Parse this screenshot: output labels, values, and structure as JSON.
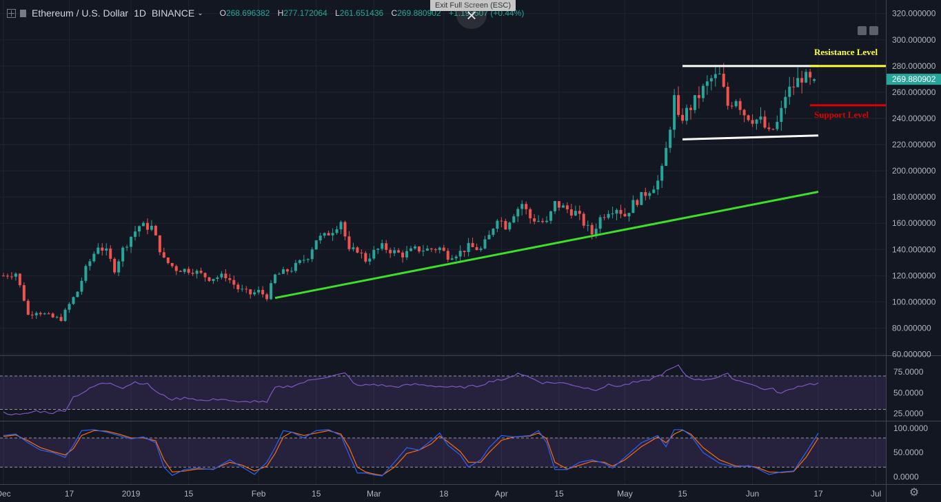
{
  "header": {
    "symbol": "Ethereum / U.S. Dollar",
    "interval": "1D",
    "exchange": "BINANCE",
    "open_label": "O",
    "open": "268.696382",
    "high_label": "H",
    "high": "277.172064",
    "low_label": "L",
    "low": "261.651436",
    "close_label": "C",
    "close": "269.880902",
    "change": "+1.193507 (+0.44%)"
  },
  "exit_fullscreen": "Exit Full Screen (ESC)",
  "colors": {
    "background": "#131722",
    "up": "#26a69a",
    "down": "#ef5350",
    "trendline": "#3ce02a",
    "resistance": "#ffff3c",
    "support": "#e00000",
    "channel": "#ffffff",
    "rsi": "#7e57c2",
    "stoch_k": "#2962ff",
    "stoch_d": "#ff6d00"
  },
  "chart_data": [
    {
      "type": "candlestick",
      "title": "Ethereum / U.S. Dollar 1D BINANCE",
      "y_ticks": [
        "60.000000",
        "80.000000",
        "100.000000",
        "120.000000",
        "140.000000",
        "160.000000",
        "180.000000",
        "200.000000",
        "220.000000",
        "240.000000",
        "260.000000",
        "280.000000",
        "300.000000",
        "320.000000"
      ],
      "ylim": [
        60,
        320
      ],
      "x_ticks": [
        {
          "label": "Dec",
          "day": 0
        },
        {
          "label": "17",
          "day": 16
        },
        {
          "label": "2019",
          "day": 31
        },
        {
          "label": "15",
          "day": 45
        },
        {
          "label": "Feb",
          "day": 62
        },
        {
          "label": "15",
          "day": 76
        },
        {
          "label": "Mar",
          "day": 90
        },
        {
          "label": "18",
          "day": 107
        },
        {
          "label": "Apr",
          "day": 121
        },
        {
          "label": "15",
          "day": 135
        },
        {
          "label": "May",
          "day": 151
        },
        {
          "label": "15",
          "day": 165
        },
        {
          "label": "Jun",
          "day": 182
        },
        {
          "label": "17",
          "day": 198
        },
        {
          "label": "Jul",
          "day": 212
        }
      ],
      "last_price": "269.880902",
      "anchors": [
        [
          0,
          120
        ],
        [
          3,
          122
        ],
        [
          5,
          102
        ],
        [
          6,
          90
        ],
        [
          8,
          93
        ],
        [
          12,
          88
        ],
        [
          14,
          87
        ],
        [
          16,
          98
        ],
        [
          18,
          108
        ],
        [
          20,
          125
        ],
        [
          23,
          143
        ],
        [
          25,
          138
        ],
        [
          27,
          125
        ],
        [
          29,
          140
        ],
        [
          31,
          150
        ],
        [
          33,
          158
        ],
        [
          36,
          157
        ],
        [
          39,
          132
        ],
        [
          42,
          125
        ],
        [
          46,
          124
        ],
        [
          50,
          118
        ],
        [
          54,
          120
        ],
        [
          57,
          110
        ],
        [
          60,
          106
        ],
        [
          62,
          108
        ],
        [
          64,
          104
        ],
        [
          66,
          120
        ],
        [
          70,
          125
        ],
        [
          74,
          135
        ],
        [
          76,
          148
        ],
        [
          78,
          150
        ],
        [
          80,
          155
        ],
        [
          82,
          162
        ],
        [
          84,
          138
        ],
        [
          86,
          140
        ],
        [
          88,
          132
        ],
        [
          90,
          138
        ],
        [
          92,
          142
        ],
        [
          95,
          138
        ],
        [
          97,
          136
        ],
        [
          100,
          140
        ],
        [
          103,
          140
        ],
        [
          106,
          141
        ],
        [
          108,
          135
        ],
        [
          111,
          138
        ],
        [
          113,
          142
        ],
        [
          116,
          140
        ],
        [
          118,
          150
        ],
        [
          120,
          165
        ],
        [
          122,
          158
        ],
        [
          124,
          168
        ],
        [
          126,
          175
        ],
        [
          128,
          164
        ],
        [
          130,
          162
        ],
        [
          132,
          160
        ],
        [
          134,
          175
        ],
        [
          136,
          172
        ],
        [
          139,
          168
        ],
        [
          141,
          160
        ],
        [
          143,
          152
        ],
        [
          145,
          164
        ],
        [
          147,
          170
        ],
        [
          149,
          172
        ],
        [
          151,
          166
        ],
        [
          153,
          175
        ],
        [
          155,
          180
        ],
        [
          157,
          186
        ],
        [
          159,
          192
        ],
        [
          160,
          200
        ],
        [
          161,
          216
        ],
        [
          162,
          235
        ],
        [
          163,
          255
        ],
        [
          164,
          238
        ],
        [
          166,
          245
        ],
        [
          168,
          253
        ],
        [
          170,
          262
        ],
        [
          172,
          270
        ],
        [
          174,
          272
        ],
        [
          176,
          250
        ],
        [
          178,
          256
        ],
        [
          180,
          244
        ],
        [
          182,
          240
        ],
        [
          184,
          238
        ],
        [
          186,
          228
        ],
        [
          188,
          236
        ],
        [
          189,
          245
        ],
        [
          190,
          258
        ],
        [
          192,
          265
        ],
        [
          194,
          272
        ],
        [
          196,
          268
        ],
        [
          197,
          270
        ]
      ],
      "trendline": {
        "from": {
          "day": 66,
          "price": 103
        },
        "to": {
          "day": 198,
          "price": 184
        }
      },
      "channel_top": {
        "from": {
          "day": 165,
          "price": 280
        },
        "to": {
          "day": 198,
          "price": 280
        }
      },
      "channel_bottom": {
        "from": {
          "day": 165,
          "price": 224
        },
        "to": {
          "day": 198,
          "price": 227
        }
      },
      "resistance": {
        "label": "Resistance Level",
        "price": 280
      },
      "support": {
        "label": "Support Level",
        "price": 250
      }
    },
    {
      "type": "line",
      "name": "RSI",
      "y_ticks": [
        "25.0000",
        "50.0000",
        "75.0000"
      ],
      "ylim": [
        20,
        90
      ],
      "bands": [
        30,
        70
      ],
      "anchors": [
        [
          0,
          26
        ],
        [
          4,
          23
        ],
        [
          8,
          28
        ],
        [
          12,
          26
        ],
        [
          15,
          29
        ],
        [
          17,
          45
        ],
        [
          20,
          52
        ],
        [
          23,
          60
        ],
        [
          26,
          62
        ],
        [
          29,
          56
        ],
        [
          32,
          63
        ],
        [
          35,
          60
        ],
        [
          38,
          48
        ],
        [
          41,
          42
        ],
        [
          45,
          44
        ],
        [
          49,
          40
        ],
        [
          53,
          43
        ],
        [
          57,
          38
        ],
        [
          61,
          40
        ],
        [
          64,
          38
        ],
        [
          66,
          56
        ],
        [
          70,
          58
        ],
        [
          74,
          64
        ],
        [
          77,
          68
        ],
        [
          80,
          70
        ],
        [
          83,
          73
        ],
        [
          86,
          58
        ],
        [
          90,
          60
        ],
        [
          95,
          57
        ],
        [
          100,
          60
        ],
        [
          105,
          58
        ],
        [
          110,
          56
        ],
        [
          115,
          58
        ],
        [
          120,
          66
        ],
        [
          122,
          65
        ],
        [
          125,
          74
        ],
        [
          128,
          68
        ],
        [
          131,
          62
        ],
        [
          135,
          62
        ],
        [
          138,
          60
        ],
        [
          141,
          56
        ],
        [
          144,
          54
        ],
        [
          147,
          59
        ],
        [
          150,
          58
        ],
        [
          153,
          62
        ],
        [
          156,
          64
        ],
        [
          159,
          70
        ],
        [
          162,
          78
        ],
        [
          164,
          82
        ],
        [
          166,
          70
        ],
        [
          169,
          65
        ],
        [
          173,
          68
        ],
        [
          176,
          72
        ],
        [
          178,
          65
        ],
        [
          181,
          62
        ],
        [
          184,
          55
        ],
        [
          187,
          54
        ],
        [
          189,
          49
        ],
        [
          192,
          56
        ],
        [
          195,
          60
        ],
        [
          198,
          61
        ]
      ]
    },
    {
      "type": "line",
      "name": "Stochastic",
      "y_ticks": [
        "0.0000",
        "50.0000",
        "100.0000"
      ],
      "ylim": [
        -5,
        105
      ],
      "bands": [
        20,
        80
      ],
      "k_anchors": [
        [
          0,
          85
        ],
        [
          3,
          88
        ],
        [
          6,
          70
        ],
        [
          9,
          55
        ],
        [
          12,
          50
        ],
        [
          15,
          40
        ],
        [
          17,
          65
        ],
        [
          19,
          95
        ],
        [
          22,
          97
        ],
        [
          25,
          92
        ],
        [
          28,
          85
        ],
        [
          31,
          78
        ],
        [
          34,
          82
        ],
        [
          37,
          70
        ],
        [
          39,
          20
        ],
        [
          41,
          3
        ],
        [
          44,
          15
        ],
        [
          47,
          18
        ],
        [
          51,
          15
        ],
        [
          55,
          35
        ],
        [
          58,
          20
        ],
        [
          61,
          5
        ],
        [
          64,
          30
        ],
        [
          66,
          60
        ],
        [
          68,
          95
        ],
        [
          70,
          92
        ],
        [
          73,
          80
        ],
        [
          76,
          95
        ],
        [
          79,
          97
        ],
        [
          82,
          85
        ],
        [
          84,
          45
        ],
        [
          86,
          8
        ],
        [
          88,
          8
        ],
        [
          90,
          4
        ],
        [
          92,
          2
        ],
        [
          95,
          30
        ],
        [
          98,
          60
        ],
        [
          101,
          55
        ],
        [
          104,
          75
        ],
        [
          106,
          90
        ],
        [
          108,
          65
        ],
        [
          111,
          45
        ],
        [
          113,
          20
        ],
        [
          116,
          35
        ],
        [
          118,
          60
        ],
        [
          121,
          85
        ],
        [
          124,
          82
        ],
        [
          128,
          85
        ],
        [
          130,
          95
        ],
        [
          132,
          70
        ],
        [
          134,
          15
        ],
        [
          137,
          15
        ],
        [
          140,
          30
        ],
        [
          143,
          35
        ],
        [
          146,
          28
        ],
        [
          148,
          18
        ],
        [
          151,
          40
        ],
        [
          155,
          70
        ],
        [
          159,
          85
        ],
        [
          161,
          62
        ],
        [
          163,
          97
        ],
        [
          165,
          97
        ],
        [
          167,
          85
        ],
        [
          170,
          50
        ],
        [
          174,
          28
        ],
        [
          178,
          20
        ],
        [
          181,
          23
        ],
        [
          183,
          18
        ],
        [
          186,
          5
        ],
        [
          189,
          10
        ],
        [
          192,
          12
        ],
        [
          195,
          50
        ],
        [
          198,
          90
        ]
      ],
      "d_anchors": [
        [
          0,
          83
        ],
        [
          3,
          86
        ],
        [
          6,
          74
        ],
        [
          9,
          60
        ],
        [
          12,
          52
        ],
        [
          15,
          45
        ],
        [
          17,
          58
        ],
        [
          19,
          85
        ],
        [
          22,
          95
        ],
        [
          25,
          94
        ],
        [
          28,
          88
        ],
        [
          31,
          80
        ],
        [
          34,
          80
        ],
        [
          37,
          74
        ],
        [
          39,
          35
        ],
        [
          41,
          10
        ],
        [
          44,
          12
        ],
        [
          47,
          16
        ],
        [
          51,
          16
        ],
        [
          55,
          30
        ],
        [
          58,
          24
        ],
        [
          61,
          12
        ],
        [
          64,
          22
        ],
        [
          66,
          48
        ],
        [
          68,
          82
        ],
        [
          70,
          92
        ],
        [
          73,
          85
        ],
        [
          76,
          90
        ],
        [
          79,
          95
        ],
        [
          82,
          88
        ],
        [
          84,
          60
        ],
        [
          86,
          20
        ],
        [
          88,
          10
        ],
        [
          90,
          6
        ],
        [
          92,
          3
        ],
        [
          95,
          20
        ],
        [
          98,
          48
        ],
        [
          101,
          55
        ],
        [
          104,
          68
        ],
        [
          106,
          84
        ],
        [
          108,
          72
        ],
        [
          111,
          52
        ],
        [
          113,
          30
        ],
        [
          116,
          30
        ],
        [
          118,
          50
        ],
        [
          121,
          75
        ],
        [
          124,
          82
        ],
        [
          128,
          84
        ],
        [
          130,
          90
        ],
        [
          132,
          78
        ],
        [
          134,
          30
        ],
        [
          137,
          16
        ],
        [
          140,
          24
        ],
        [
          143,
          32
        ],
        [
          146,
          30
        ],
        [
          148,
          22
        ],
        [
          151,
          35
        ],
        [
          155,
          62
        ],
        [
          159,
          82
        ],
        [
          161,
          70
        ],
        [
          163,
          88
        ],
        [
          165,
          96
        ],
        [
          167,
          88
        ],
        [
          170,
          60
        ],
        [
          174,
          35
        ],
        [
          178,
          22
        ],
        [
          181,
          22
        ],
        [
          183,
          20
        ],
        [
          186,
          10
        ],
        [
          189,
          9
        ],
        [
          192,
          11
        ],
        [
          195,
          40
        ],
        [
          198,
          80
        ]
      ]
    }
  ]
}
